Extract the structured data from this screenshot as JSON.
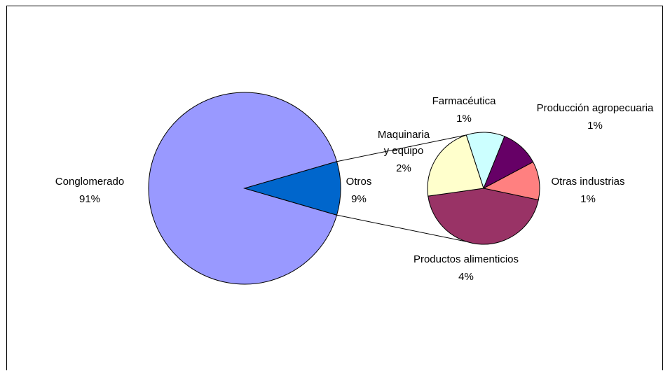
{
  "chart_data": {
    "type": "pie",
    "subtype": "pie-of-pie",
    "main": {
      "slices": [
        {
          "label": "Conglomerado",
          "percent_label": "91%",
          "value": 91,
          "color": "#9999ff"
        },
        {
          "label": "Otros",
          "percent_label": "9%",
          "value": 9,
          "color": "#0066cc"
        }
      ]
    },
    "secondary": {
      "slices": [
        {
          "label": "Farmacéutica",
          "percent_label": "1%",
          "value": 1,
          "color": "#ccffff"
        },
        {
          "label": "Producción agropecuaria",
          "percent_label": "1%",
          "value": 1,
          "color": "#660066"
        },
        {
          "label": "Otras industrias",
          "percent_label": "1%",
          "value": 1,
          "color": "#ff8080"
        },
        {
          "label": "Productos alimenticios",
          "percent_label": "4%",
          "value": 4,
          "color": "#993366"
        },
        {
          "label": "Maquinaria y equipo",
          "label_lines": [
            "Maquinaria",
            "y equipo"
          ],
          "percent_label": "2%",
          "value": 2,
          "color": "#ffffcc"
        }
      ]
    },
    "legend": "none"
  }
}
